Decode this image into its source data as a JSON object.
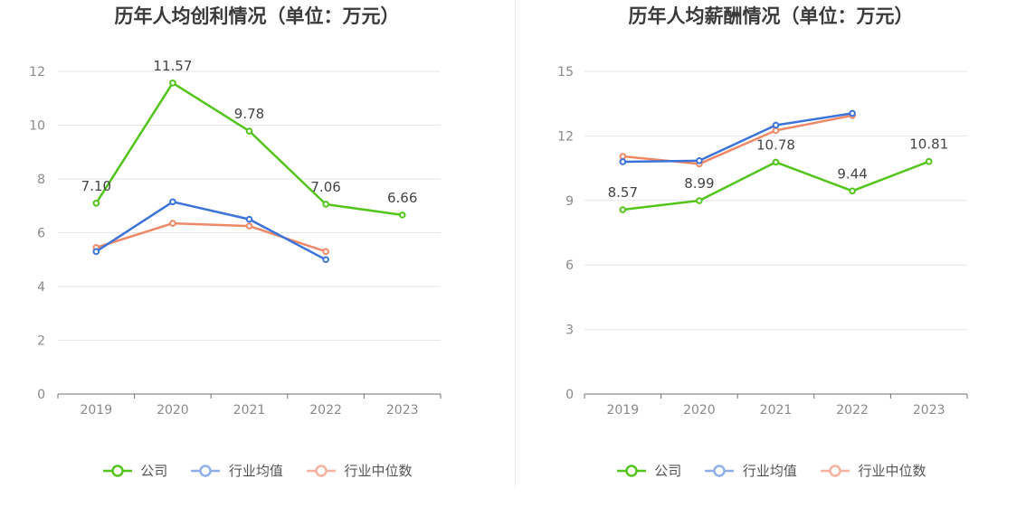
{
  "chart_data": [
    {
      "type": "line",
      "title": "历年人均创利情况（单位：万元）",
      "categories": [
        "2019",
        "2020",
        "2021",
        "2022",
        "2023"
      ],
      "ylim": [
        0,
        12
      ],
      "yticks": [
        0,
        2,
        4,
        6,
        8,
        10,
        12
      ],
      "grid": true,
      "legend_position": "bottom",
      "series": [
        {
          "name": "公司",
          "color": "#52c41a",
          "values": [
            7.1,
            11.57,
            9.78,
            7.06,
            6.66
          ],
          "labels": [
            "7.10",
            "11.57",
            "9.78",
            "7.06",
            "6.66"
          ]
        },
        {
          "name": "行业均值",
          "color": "#3b73d9",
          "values": [
            5.3,
            7.15,
            6.5,
            5.0,
            null
          ]
        },
        {
          "name": "行业中位数",
          "color": "#ee8866",
          "values": [
            5.45,
            6.35,
            6.25,
            5.3,
            null
          ]
        }
      ]
    },
    {
      "type": "line",
      "title": "历年人均薪酬情况（单位：万元）",
      "categories": [
        "2019",
        "2020",
        "2021",
        "2022",
        "2023"
      ],
      "ylim": [
        0,
        15
      ],
      "yticks": [
        0,
        3,
        6,
        9,
        12,
        15
      ],
      "grid": true,
      "legend_position": "bottom",
      "series": [
        {
          "name": "公司",
          "color": "#52c41a",
          "values": [
            8.57,
            8.99,
            10.78,
            9.44,
            10.81
          ],
          "labels": [
            "8.57",
            "8.99",
            "10.78",
            "9.44",
            "10.81"
          ]
        },
        {
          "name": "行业均值",
          "color": "#3b73d9",
          "values": [
            10.8,
            10.85,
            12.5,
            13.05,
            null
          ]
        },
        {
          "name": "行业中位数",
          "color": "#ee8866",
          "values": [
            11.05,
            10.7,
            12.25,
            12.95,
            null
          ]
        }
      ]
    }
  ],
  "legend_colors": [
    "#52c41a",
    "#8fb0ea",
    "#f5b3a0"
  ]
}
